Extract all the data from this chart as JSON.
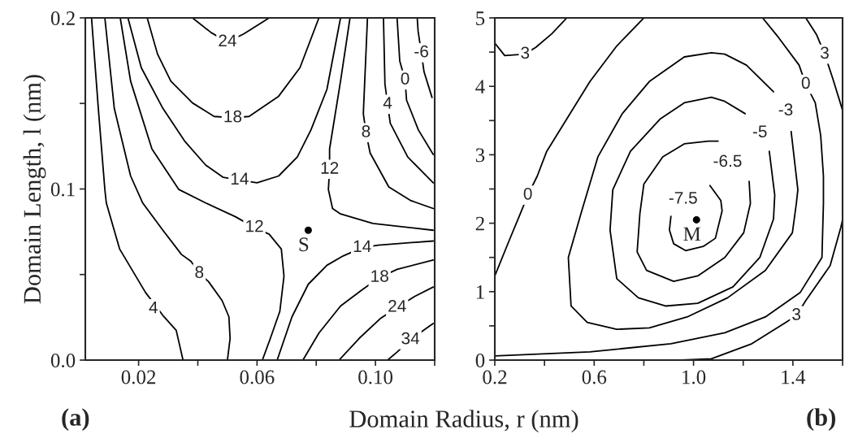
{
  "chart_data": [
    {
      "type": "line",
      "xlabel": "Domain Radius, r (nm)",
      "ylabel": "Domain Length, l (nm)",
      "xlim": [
        0.002,
        0.12
      ],
      "ylim": [
        0,
        0.2
      ],
      "xticks": [
        0.02,
        {
          "value": 0.04,
          "label": null
        },
        0.06,
        {
          "value": 0.08,
          "label": null
        },
        {
          "value": 0.1,
          "label": "0.10"
        },
        {
          "value": 0.12,
          "label": null
        }
      ],
      "yticks": [
        {
          "value": 0,
          "label": "0.0"
        },
        {
          "value": 0.05,
          "label": null
        },
        0.1,
        {
          "value": 0.15,
          "label": null
        },
        0.2
      ],
      "series": [
        {
          "color": "#000000",
          "x": [
            0.0041,
            0.0064,
            0.0086,
            0.0091,
            0.0136,
            0.0223,
            0.0282,
            0.0327,
            0.035
          ],
          "values": [
            0.2,
            0.147,
            0.0997,
            0.0918,
            0.0649,
            0.0396,
            0.0261,
            0.0174,
            0
          ]
        },
        {
          "color": "#000000",
          "x": [
            0.0086,
            0.0118,
            0.0173,
            0.0214,
            0.0282,
            0.0345,
            0.0377,
            0.0405,
            0.0436,
            0.0482,
            0.0505,
            0.0509,
            0.05
          ],
          "values": [
            0.2,
            0.147,
            0.1076,
            0.0918,
            0.0759,
            0.0617,
            0.0577,
            0.0506,
            0.0459,
            0.0348,
            0.0253,
            0.0127,
            0
          ]
        },
        {
          "color": "#000000",
          "x": [
            0.0138,
            0.0173,
            0.0245,
            0.0336,
            0.0427,
            0.0527,
            0.0591,
            0.0641,
            0.0682,
            0.0691,
            0.0677,
            0.0645,
            0.0618
          ],
          "values": [
            0.2,
            0.163,
            0.1234,
            0.0997,
            0.0918,
            0.0838,
            0.0775,
            0.0736,
            0.0649,
            0.049,
            0.0285,
            0.0127,
            0
          ]
        },
        {
          "color": "#000000",
          "x": [
            0.0164,
            0.0209,
            0.0282,
            0.0355,
            0.0427,
            0.0486,
            0.0541,
            0.06,
            0.0673,
            0.0736,
            0.0782,
            0.0836,
            0.0882
          ],
          "values": [
            0.2,
            0.1709,
            0.1471,
            0.1281,
            0.1139,
            0.1068,
            0.1052,
            0.1036,
            0.1076,
            0.1187,
            0.1345,
            0.1582,
            0.2
          ]
        },
        {
          "color": "#000000",
          "x": [
            0.0229,
            0.0264,
            0.0309,
            0.0382,
            0.0455,
            0.0518,
            0.0573,
            0.0673,
            0.0745,
            0.0809
          ],
          "values": [
            0.2,
            0.1788,
            0.163,
            0.1503,
            0.1424,
            0.1416,
            0.1424,
            0.1542,
            0.1709,
            0.2
          ]
        },
        {
          "color": "#000000",
          "x": [
            0.0382,
            0.0445,
            0.05,
            0.0555,
            0.0641
          ],
          "values": [
            0.2,
            0.1914,
            0.1859,
            0.1906,
            0.2
          ]
        },
        {
          "color": "#000000",
          "x": [
            0.0914,
            0.0882,
            0.0845,
            0.0845,
            0.0841,
            0.0855,
            0.0882,
            0.0991,
            0.1195
          ],
          "values": [
            0.2,
            0.163,
            0.1234,
            0.1115,
            0.0997,
            0.0886,
            0.0854,
            0.0799,
            0.0759
          ]
        },
        {
          "color": "#000000",
          "x": [
            0.0973,
            0.0959,
            0.0968,
            0.0982,
            0.1045,
            0.1118,
            0.1195
          ],
          "values": [
            0.2,
            0.144,
            0.1329,
            0.121,
            0.1012,
            0.0933,
            0.0886
          ]
        },
        {
          "color": "#000000",
          "x": [
            0.1027,
            0.1032,
            0.1041,
            0.105,
            0.1109,
            0.1195
          ],
          "values": [
            0.2,
            0.1614,
            0.1495,
            0.1384,
            0.1187,
            0.1036
          ]
        },
        {
          "color": "#000000",
          "x": [
            0.1073,
            0.1082,
            0.11,
            0.1105,
            0.1145,
            0.1195
          ],
          "values": [
            0.2,
            0.1748,
            0.1637,
            0.1519,
            0.1345,
            0.1202
          ]
        },
        {
          "color": "#000000",
          "x": [
            0.1141,
            0.1144,
            0.1155,
            0.1164,
            0.1191
          ],
          "values": [
            0.2,
            0.1922,
            0.1796,
            0.1685,
            0.1535
          ]
        },
        {
          "color": "#000000",
          "x": [
            0.0668,
            0.0718,
            0.0773,
            0.0836,
            0.0891,
            0.0955,
            0.1009,
            0.1195
          ],
          "values": [
            0,
            0.0253,
            0.0443,
            0.0554,
            0.0609,
            0.0657,
            0.0672,
            0.0696
          ]
        },
        {
          "color": "#000000",
          "x": [
            0.0755,
            0.0809,
            0.0882,
            0.0955,
            0.1014,
            0.1073,
            0.1195
          ],
          "values": [
            0,
            0.0158,
            0.0316,
            0.0411,
            0.0483,
            0.053,
            0.0585
          ]
        },
        {
          "color": "#000000",
          "x": [
            0.0877,
            0.0945,
            0.1018,
            0.1073,
            0.1132,
            0.1195
          ],
          "values": [
            0,
            0.0127,
            0.0245,
            0.0308,
            0.0372,
            0.0427
          ]
        },
        {
          "color": "#000000",
          "x": [
            0.1041,
            0.1073,
            0.1118,
            0.1182,
            0.1195
          ],
          "values": [
            0,
            0.0047,
            0.0119,
            0.0198,
            0.0214
          ]
        },
        {
          "type": "scatter",
          "name": "S",
          "color": "#000000",
          "x": [
            0.0773
          ],
          "values": [
            0.0759
          ]
        }
      ],
      "annotations": [
        {
          "text": "4",
          "x": 0.025,
          "y": 0.03
        },
        {
          "text": "8",
          "x": 0.0405,
          "y": 0.0506
        },
        {
          "text": "12",
          "x": 0.0591,
          "y": 0.0775
        },
        {
          "text": "14",
          "x": 0.0541,
          "y": 0.1052
        },
        {
          "text": "18",
          "x": 0.0518,
          "y": 0.1416
        },
        {
          "text": "24",
          "x": 0.05,
          "y": 0.1859
        },
        {
          "text": "12",
          "x": 0.0845,
          "y": 0.1115
        },
        {
          "text": "8",
          "x": 0.0968,
          "y": 0.1329
        },
        {
          "text": "4",
          "x": 0.1041,
          "y": 0.1495
        },
        {
          "text": "0",
          "x": 0.11,
          "y": 0.1637
        },
        {
          "text": "-6",
          "x": 0.1155,
          "y": 0.1796
        },
        {
          "text": "14",
          "x": 0.0955,
          "y": 0.0657
        },
        {
          "text": "18",
          "x": 0.1014,
          "y": 0.0483
        },
        {
          "text": "24",
          "x": 0.1073,
          "y": 0.0308
        },
        {
          "text": "34",
          "x": 0.1118,
          "y": 0.0119
        },
        "(a)"
      ]
    },
    {
      "type": "line",
      "xlim": [
        0.2,
        1.6
      ],
      "ylim": [
        0,
        5
      ],
      "xticks": [
        0.2,
        {
          "value": 0.4,
          "label": null
        },
        0.6,
        {
          "value": 0.8,
          "label": null
        },
        {
          "value": 1,
          "label": "1.0"
        },
        {
          "value": 1.2,
          "label": null
        },
        1.4,
        {
          "value": 1.6,
          "label": null
        }
      ],
      "yticks": [
        0,
        {
          "value": 0.5,
          "label": null
        },
        1,
        {
          "value": 1.5,
          "label": null
        },
        2,
        {
          "value": 2.5,
          "label": null
        },
        3,
        {
          "value": 3.5,
          "label": null
        },
        4,
        {
          "value": 4.5,
          "label": null
        },
        5
      ],
      "series": [
        {
          "color": "#000000",
          "x": [
            0.2,
            0.24,
            0.32,
            0.365,
            0.43,
            0.49
          ],
          "values": [
            4.63,
            4.45,
            4.47,
            4.57,
            4.77,
            5
          ]
        },
        {
          "color": "#000000",
          "x": [
            0.8,
            0.691,
            0.583,
            0.496,
            0.409,
            0.371,
            0.333,
            0.305,
            0.257,
            0.2
          ],
          "values": [
            5,
            4.59,
            4.07,
            3.56,
            3.05,
            2.69,
            2.41,
            2.16,
            1.74,
            1.23
          ]
        },
        {
          "color": "#000000",
          "x": [
            1.066,
            1.11,
            1.115,
            1.088,
            1.039,
            0.968,
            0.92,
            0.903,
            0.909
          ],
          "values": [
            2.55,
            2.33,
            2.18,
            1.78,
            1.66,
            1.6,
            1.7,
            1.9,
            2.1
          ]
        },
        {
          "color": "#000000",
          "x": [
            1.099,
            1.061,
            0.963,
            0.876,
            0.8,
            0.784,
            0.773,
            0.811,
            0.92,
            1.017,
            1.126,
            1.202,
            1.229,
            1.224
          ],
          "values": [
            3.2,
            3.2,
            3.16,
            2.97,
            2.57,
            2.14,
            1.58,
            1.31,
            1.15,
            1.23,
            1.5,
            1.86,
            2.29,
            2.61
          ]
        },
        {
          "color": "#000000",
          "x": [
            1.208,
            1.126,
            1.072,
            0.963,
            0.865,
            0.746,
            0.675,
            0.664,
            0.691,
            0.778,
            0.887,
            1.017,
            1.159,
            1.267,
            1.322,
            1.327,
            1.305
          ],
          "values": [
            3.6,
            3.78,
            3.84,
            3.76,
            3.52,
            3.05,
            2.49,
            1.9,
            1.19,
            0.91,
            0.79,
            0.83,
            1.07,
            1.5,
            2.06,
            2.41,
            3.05
          ]
        },
        {
          "color": "#000000",
          "x": [
            1.322,
            1.213,
            1.126,
            1.072,
            0.963,
            0.822,
            0.713,
            0.615,
            0.55,
            0.496,
            0.507,
            0.572,
            0.691,
            0.822,
            0.974,
            1.137,
            1.289,
            1.398,
            1.414,
            1.42,
            1.393
          ],
          "values": [
            3.92,
            4.31,
            4.47,
            4.49,
            4.43,
            4.07,
            3.6,
            2.97,
            2.18,
            1.5,
            0.79,
            0.55,
            0.45,
            0.47,
            0.63,
            0.91,
            1.31,
            1.86,
            2.29,
            2.49,
            3.34
          ]
        },
        {
          "color": "#000000",
          "x": [
            1.278,
            1.343,
            1.425,
            1.452,
            1.49,
            1.512,
            1.523,
            1.523,
            1.517,
            1.43,
            1.289,
            1.126,
            0.909,
            0.583,
            0.2
          ],
          "values": [
            5,
            4.71,
            4.31,
            4.03,
            3.76,
            3.28,
            2.69,
            2.29,
            1.5,
            0.99,
            0.63,
            0.4,
            0.24,
            0.12,
            0.06
          ]
        },
        {
          "color": "#000000",
          "x": [
            1.452,
            1.496,
            1.528,
            1.561,
            1.6
          ],
          "values": [
            5,
            4.75,
            4.47,
            4.11,
            3.65
          ]
        },
        {
          "color": "#000000",
          "x": [
            1.6,
            1.593,
            1.55,
            1.452,
            1.414,
            1.371,
            1.235,
            1.072,
            0.952
          ],
          "values": [
            2.05,
            1.94,
            1.38,
            0.87,
            0.65,
            0.55,
            0.24,
            0.02,
            0
          ]
        },
        {
          "type": "scatter",
          "name": "M",
          "color": "#000000",
          "x": [
            1.012
          ],
          "values": [
            2.05
          ]
        }
      ],
      "annotations": [
        {
          "text": "3",
          "x": 0.322,
          "y": 4.47
        },
        {
          "text": "0",
          "x": 0.333,
          "y": 2.41
        },
        {
          "text": "3",
          "x": 1.528,
          "y": 4.47
        },
        {
          "text": "0",
          "x": 1.452,
          "y": 4.03
        },
        {
          "text": "-3",
          "x": 1.371,
          "y": 3.64
        },
        {
          "text": "-5",
          "x": 1.267,
          "y": 3.32
        },
        {
          "text": "-6.5",
          "x": 1.137,
          "y": 2.89
        },
        {
          "text": "-7.5",
          "x": 0.958,
          "y": 2.35
        },
        {
          "text": "3",
          "x": 1.414,
          "y": 0.65
        },
        "(b)"
      ]
    }
  ]
}
